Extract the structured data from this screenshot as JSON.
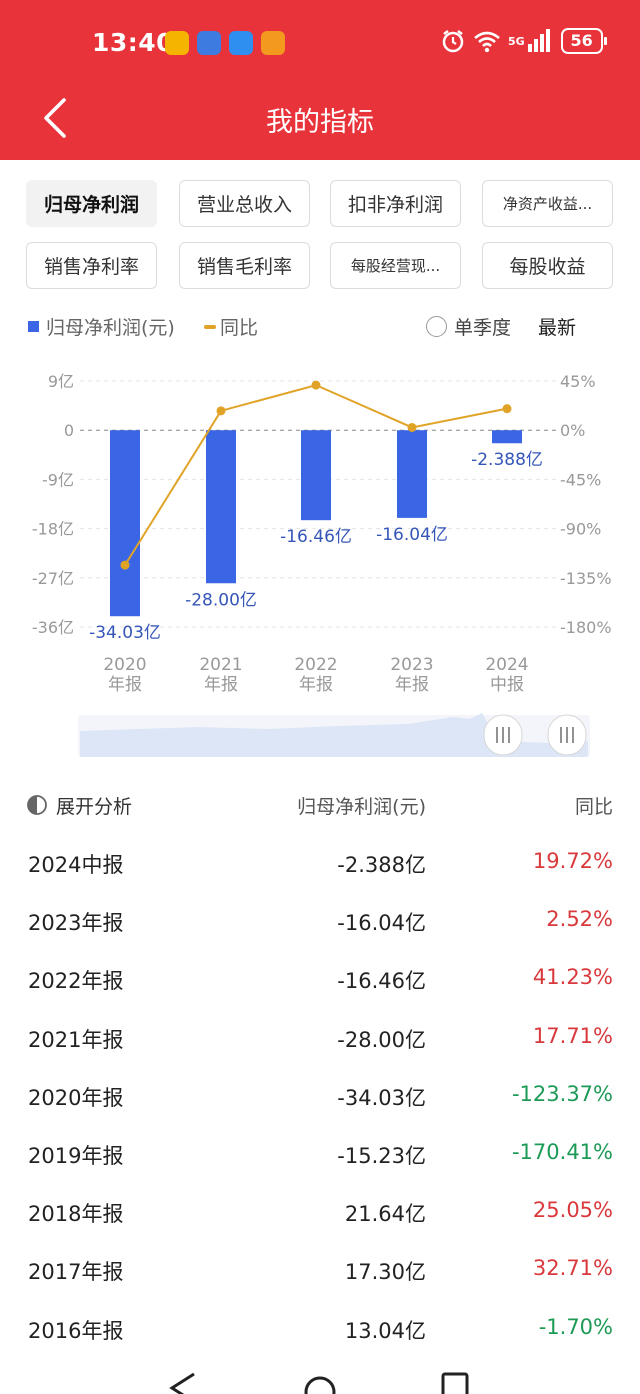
{
  "status_bar": {
    "time": "13:40",
    "network": "5G",
    "battery": "56",
    "notification_icons": [
      "weibo-icon",
      "app-icon",
      "cloud-icon",
      "video-icon"
    ]
  },
  "header": {
    "title": "我的指标"
  },
  "metric_chips": [
    {
      "label": "归母净利润",
      "active": true
    },
    {
      "label": "营业总收入",
      "active": false
    },
    {
      "label": "扣非净利润",
      "active": false
    },
    {
      "label": "净资产收益...",
      "active": false
    },
    {
      "label": "销售净利率",
      "active": false
    },
    {
      "label": "销售毛利率",
      "active": false
    },
    {
      "label": "每股经营现...",
      "active": false
    },
    {
      "label": "每股收益",
      "active": false
    }
  ],
  "legend": {
    "bar_label": "归母净利润(元)",
    "line_label": "同比",
    "single_quarter": "单季度",
    "latest": "最新"
  },
  "chart_data": {
    "type": "bar",
    "categories": [
      "2020\n年报",
      "2021\n年报",
      "2022\n年报",
      "2023\n年报",
      "2024\n中报"
    ],
    "series": [
      {
        "name": "归母净利润(元)",
        "type": "bar",
        "values": [
          -34.03,
          -28.0,
          -16.46,
          -16.04,
          -2.388
        ],
        "labels": [
          "-34.03亿",
          "-28.00亿",
          "-16.46亿",
          "-16.04亿",
          "-2.388亿"
        ],
        "unit": "亿",
        "color": "#3a66e6"
      },
      {
        "name": "同比",
        "type": "line",
        "values": [
          -123.37,
          17.71,
          41.23,
          2.52,
          19.72
        ],
        "unit": "%",
        "color": "#e0a326"
      }
    ],
    "y_left": {
      "ticks": [
        "9亿",
        "0",
        "-9亿",
        "-18亿",
        "-27亿",
        "-36亿"
      ],
      "range": [
        -36,
        9
      ]
    },
    "y_right": {
      "ticks": [
        "45%",
        "0%",
        "-45%",
        "-90%",
        "-135%",
        "-180%"
      ],
      "range": [
        -180,
        45
      ]
    },
    "grid": true
  },
  "analysis": {
    "title": "展开分析",
    "col_value": "归母净利润(元)",
    "col_yoy": "同比",
    "rows": [
      {
        "period": "2024中报",
        "value": "-2.388亿",
        "yoy": "19.72%",
        "trend": "pos"
      },
      {
        "period": "2023年报",
        "value": "-16.04亿",
        "yoy": "2.52%",
        "trend": "pos"
      },
      {
        "period": "2022年报",
        "value": "-16.46亿",
        "yoy": "41.23%",
        "trend": "pos"
      },
      {
        "period": "2021年报",
        "value": "-28.00亿",
        "yoy": "17.71%",
        "trend": "pos"
      },
      {
        "period": "2020年报",
        "value": "-34.03亿",
        "yoy": "-123.37%",
        "trend": "neg"
      },
      {
        "period": "2019年报",
        "value": "-15.23亿",
        "yoy": "-170.41%",
        "trend": "neg"
      },
      {
        "period": "2018年报",
        "value": "21.64亿",
        "yoy": "25.05%",
        "trend": "pos"
      },
      {
        "period": "2017年报",
        "value": "17.30亿",
        "yoy": "32.71%",
        "trend": "pos"
      },
      {
        "period": "2016年报",
        "value": "13.04亿",
        "yoy": "-1.70%",
        "trend": "neg"
      }
    ]
  },
  "colors": {
    "header": "#e8333a",
    "bar": "#3a66e6",
    "line": "#e0a326",
    "positive": "#d9393c",
    "negative": "#1e9a57"
  }
}
